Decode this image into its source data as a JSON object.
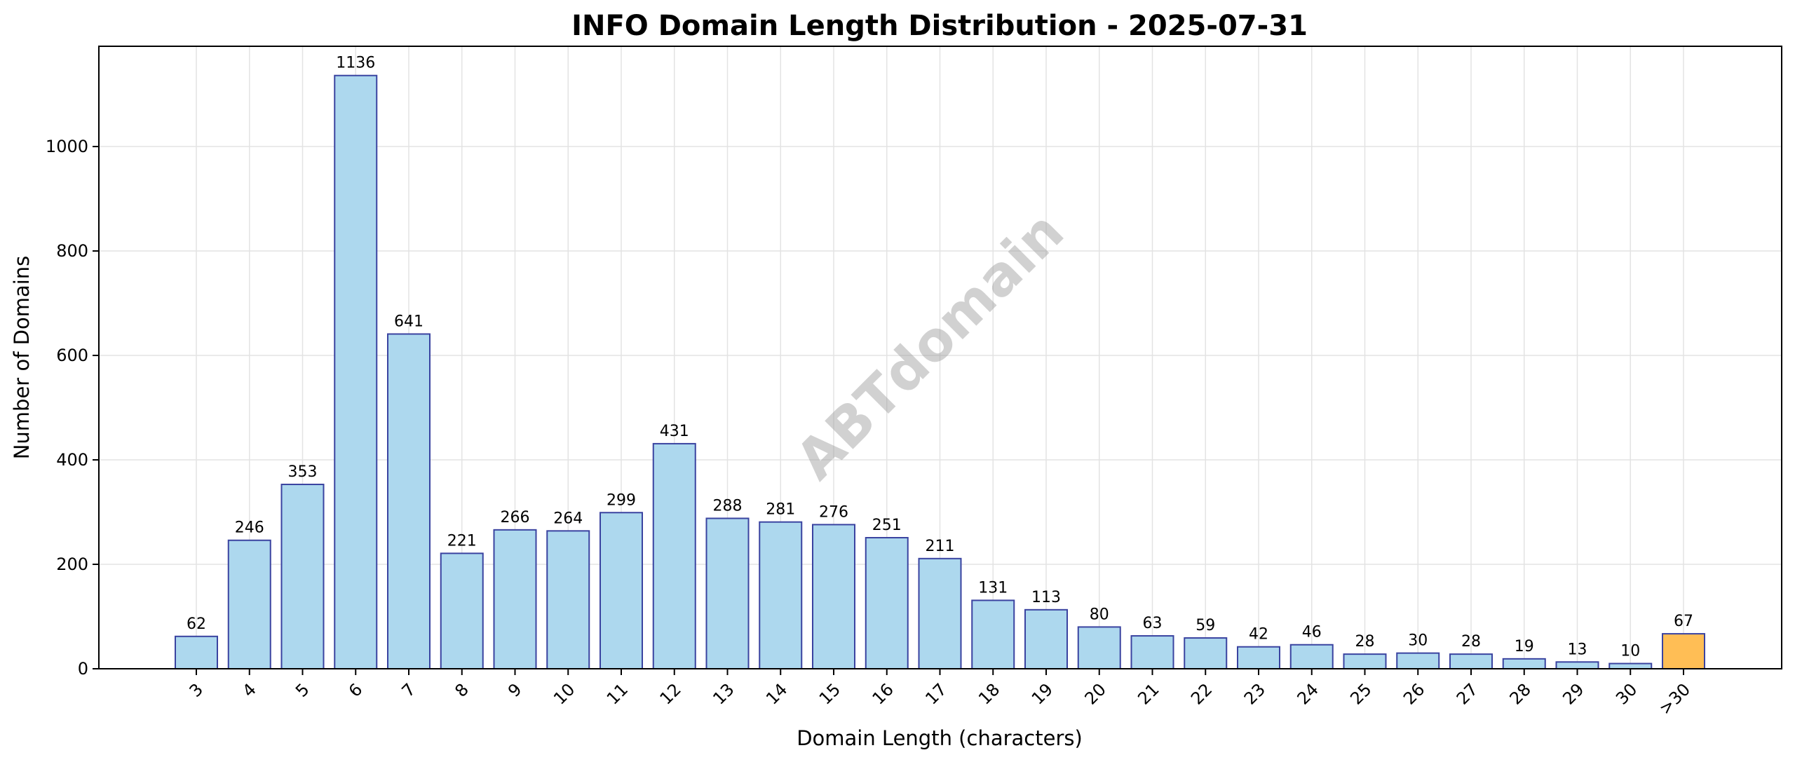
{
  "chart_data": {
    "type": "bar",
    "title": "INFO Domain Length Distribution - 2025-07-31",
    "xlabel": "Domain Length (characters)",
    "ylabel": "Number of Domains",
    "ylim": [
      0,
      1192
    ],
    "yticks": [
      0,
      200,
      400,
      600,
      800,
      1000
    ],
    "grid": true,
    "watermark": "ABTdomain",
    "categories": [
      "3",
      "4",
      "5",
      "6",
      "7",
      "8",
      "9",
      "10",
      "11",
      "12",
      "13",
      "14",
      "15",
      "16",
      "17",
      "18",
      "19",
      "20",
      "21",
      "22",
      "23",
      "24",
      "25",
      "26",
      "27",
      "28",
      "29",
      "30",
      ">30"
    ],
    "values": [
      62,
      246,
      353,
      1136,
      641,
      221,
      266,
      264,
      299,
      431,
      288,
      281,
      276,
      251,
      211,
      131,
      113,
      80,
      63,
      59,
      42,
      46,
      28,
      30,
      28,
      19,
      13,
      10,
      67
    ],
    "colors": {
      "bar_fill": "#add8ee",
      "bar_edge": "#3a43a0",
      "highlight_fill": "#ffbe55",
      "highlight_edge": "#3a43a0",
      "highlight_category": ">30"
    }
  }
}
